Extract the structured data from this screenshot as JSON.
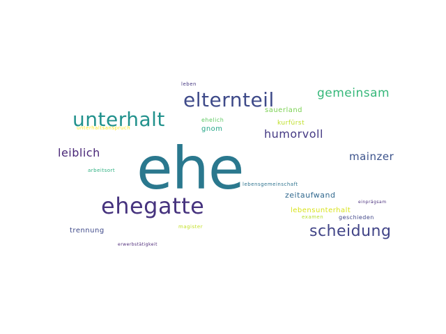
{
  "word_cloud": {
    "words": {
      "ehe": {
        "text": "ehe",
        "color": "#2a788e"
      },
      "ehegatte": {
        "text": "ehegatte",
        "color": "#46337e"
      },
      "elternteil": {
        "text": "elternteil",
        "color": "#3e4a89"
      },
      "unterhalt": {
        "text": "unterhalt",
        "color": "#21918c"
      },
      "scheidung": {
        "text": "scheidung",
        "color": "#414487"
      },
      "gemeinsam": {
        "text": "gemeinsam",
        "color": "#35b779"
      },
      "humorvoll": {
        "text": "humorvoll",
        "color": "#443983"
      },
      "leiblich": {
        "text": "leiblich",
        "color": "#482677"
      },
      "mainzer": {
        "text": "mainzer",
        "color": "#3b528b"
      },
      "sauerland": {
        "text": "sauerland",
        "color": "#7ad151"
      },
      "gnom": {
        "text": "gnom",
        "color": "#21a585"
      },
      "kurfurst": {
        "text": "kurfürst",
        "color": "#bddf26"
      },
      "ehelich": {
        "text": "ehelich",
        "color": "#5ec962"
      },
      "leben": {
        "text": "leben",
        "color": "#453781"
      },
      "unterhaltsanspruch": {
        "text": "unterhaltsanspruch",
        "color": "#fde725"
      },
      "arbeitsort": {
        "text": "arbeitsort",
        "color": "#29af7f"
      },
      "lebensgemeinschaft": {
        "text": "lebensgemeinschaft",
        "color": "#2c728e"
      },
      "zeitaufwand": {
        "text": "zeitaufwand",
        "color": "#31688e"
      },
      "einpragsam": {
        "text": "einprägsam",
        "color": "#472d7b"
      },
      "lebensunterhalt": {
        "text": "lebensunterhalt",
        "color": "#d8e219"
      },
      "examen": {
        "text": "examen",
        "color": "#b5de2b"
      },
      "geschieden": {
        "text": "geschieden",
        "color": "#404688"
      },
      "trennung": {
        "text": "trennung",
        "color": "#3e4989"
      },
      "magister": {
        "text": "magister",
        "color": "#c2df23"
      },
      "erwerbstatigkeit": {
        "text": "erwerbstätigkeit",
        "color": "#482475"
      }
    }
  }
}
